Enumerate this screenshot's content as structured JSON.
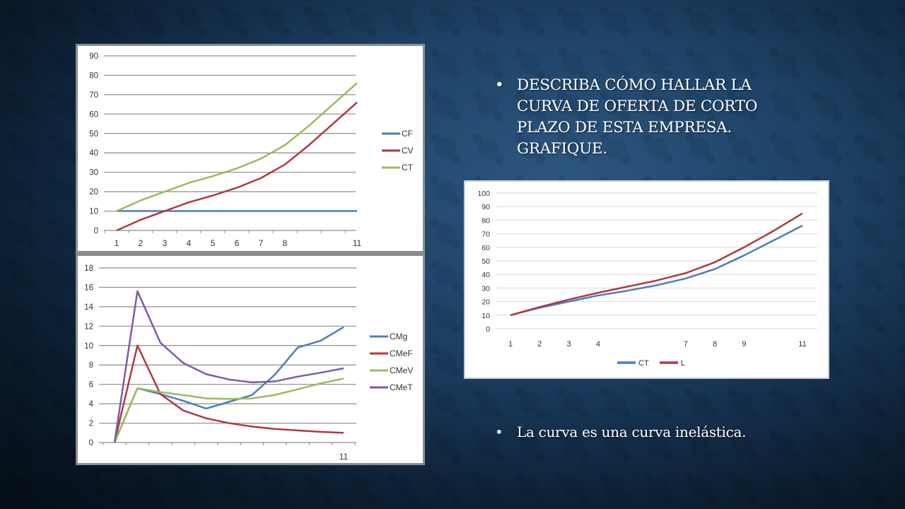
{
  "slide": {
    "background_color": "#1f4468",
    "question": "DESCRIBA CÓMO HALLAR LA CURVA DE OFERTA DE CORTO PLAZO DE ESTA EMPRESA. GRAFIQUE.",
    "answer": "La curva es una curva inelástica.",
    "bullet_glyph": "•"
  },
  "chart_data": [
    {
      "id": "costs",
      "type": "line",
      "title": "",
      "xlabel": "",
      "ylabel": "",
      "x": [
        1,
        2,
        3,
        4,
        5,
        6,
        7,
        8,
        9,
        10,
        11
      ],
      "x_tick_labels": [
        "1",
        "2",
        "3",
        "4",
        "5",
        "6",
        "7",
        "8",
        "",
        "",
        "11"
      ],
      "ylim": [
        0,
        90
      ],
      "y_ticks": [
        0,
        10,
        20,
        30,
        40,
        50,
        60,
        70,
        80,
        90
      ],
      "grid": true,
      "legend_position": "right",
      "series": [
        {
          "name": "CF",
          "color": "#4a7ebb",
          "values": [
            10,
            10,
            10,
            10,
            10,
            10,
            10,
            10,
            10,
            10,
            10
          ]
        },
        {
          "name": "CV",
          "color": "#b0393f",
          "values": [
            0,
            5.5,
            10,
            14.5,
            18,
            22,
            27,
            34,
            44,
            55,
            66
          ]
        },
        {
          "name": "CT",
          "color": "#9bbb59",
          "values": [
            10,
            15.5,
            20,
            24.5,
            28,
            32,
            37,
            44,
            54,
            65,
            76
          ]
        }
      ]
    },
    {
      "id": "unit-costs",
      "type": "line",
      "title": "",
      "xlabel": "",
      "ylabel": "",
      "x": [
        1,
        2,
        3,
        4,
        5,
        6,
        7,
        8,
        9,
        10,
        11
      ],
      "x_tick_labels": [
        "",
        "",
        "",
        "",
        "",
        "",
        "",
        "",
        "",
        "",
        "11"
      ],
      "ylim": [
        0,
        18
      ],
      "y_ticks": [
        0,
        2,
        4,
        6,
        8,
        10,
        12,
        14,
        16,
        18
      ],
      "grid": true,
      "legend_position": "right",
      "series": [
        {
          "name": "CMg",
          "color": "#4a7ebb",
          "values": [
            0,
            5.6,
            5.0,
            4.3,
            3.5,
            4.2,
            4.9,
            7.0,
            9.8,
            10.5,
            11.9
          ]
        },
        {
          "name": "CMeF",
          "color": "#b0393f",
          "values": [
            0,
            10,
            5.0,
            3.3,
            2.5,
            2.0,
            1.65,
            1.4,
            1.25,
            1.1,
            1.0
          ]
        },
        {
          "name": "CMeV",
          "color": "#9bbb59",
          "values": [
            0,
            5.6,
            5.2,
            4.9,
            4.55,
            4.5,
            4.55,
            4.9,
            5.5,
            6.1,
            6.6
          ]
        },
        {
          "name": "CMeT",
          "color": "#7d5ba6",
          "values": [
            0,
            15.6,
            10.3,
            8.2,
            7.05,
            6.5,
            6.2,
            6.3,
            6.8,
            7.2,
            7.65
          ]
        }
      ]
    },
    {
      "id": "supply",
      "type": "line",
      "title": "",
      "xlabel": "",
      "ylabel": "",
      "x": [
        1,
        2,
        3,
        4,
        5,
        6,
        7,
        8,
        9,
        10,
        11
      ],
      "x_tick_labels": [
        "1",
        "2",
        "3",
        "4",
        "",
        "",
        "7",
        "8",
        "9",
        "",
        "11"
      ],
      "ylim": [
        0,
        100
      ],
      "y_ticks": [
        0,
        10,
        20,
        30,
        40,
        50,
        60,
        70,
        80,
        90,
        100
      ],
      "grid": true,
      "legend_position": "bottom",
      "series": [
        {
          "name": "CT",
          "color": "#4a7ebb",
          "values": [
            10,
            15.5,
            20,
            24.5,
            28,
            32,
            37,
            44,
            54,
            65,
            76
          ]
        },
        {
          "name": "L",
          "color": "#b0393f",
          "values": [
            10,
            16,
            21.5,
            26.5,
            31,
            35.5,
            41,
            49,
            60,
            72,
            85
          ]
        }
      ]
    }
  ]
}
